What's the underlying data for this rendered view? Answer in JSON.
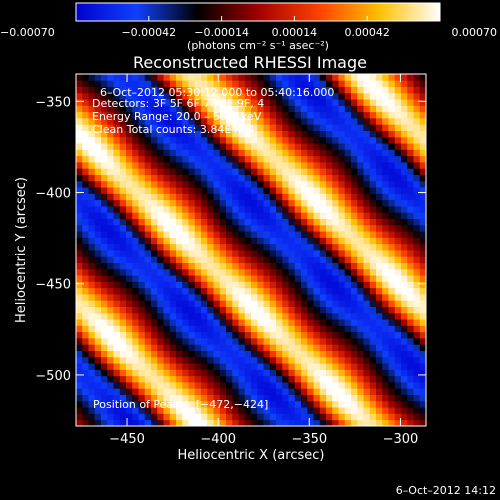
{
  "chart_data": {
    "type": "heatmap",
    "title": "Reconstructed RHESSI Image",
    "xlabel": "Heliocentric X (arcsec)",
    "ylabel": "Heliocentric Y (arcsec)",
    "xlim": [
      -478,
      -286
    ],
    "ylim": [
      -528,
      -335
    ],
    "x_ticks": [
      {
        "value": -450,
        "label": "−450"
      },
      {
        "value": -400,
        "label": "−400"
      },
      {
        "value": -350,
        "label": "−350"
      },
      {
        "value": -300,
        "label": "−300"
      }
    ],
    "y_ticks": [
      {
        "value": -350,
        "label": "−350"
      },
      {
        "value": -400,
        "label": "−400"
      },
      {
        "value": -450,
        "label": "−450"
      },
      {
        "value": -500,
        "label": "−500"
      }
    ],
    "colorbar": {
      "range": [
        -0.0007,
        0.0007
      ],
      "ticks": [
        {
          "value": -0.0007,
          "label": "−0.00070"
        },
        {
          "value": -0.00042,
          "label": "−0.00042"
        },
        {
          "value": -0.00014,
          "label": "−0.00014"
        },
        {
          "value": 0.00014,
          "label": "0.00014"
        },
        {
          "value": 0.00042,
          "label": "0.00042"
        },
        {
          "value": 0.0007,
          "label": "0.00070"
        }
      ],
      "unit_label": "(photons cm⁻² s⁻¹ asec⁻²)",
      "colormap": [
        "#0000d0",
        "#1040ff",
        "#000000",
        "#a00000",
        "#ff4000",
        "#ffc000",
        "#ffffff"
      ]
    },
    "annotations": {
      "time": "6–Oct–2012 05:30:12.000 to 05:40:16.000",
      "detectors": "Detectors: 3F 5F 6F 7F 8F 9F, 4",
      "energy": "Energy Range: 20.0 – 50.0 keV",
      "clean": "Clean    Total counts: 3.84E+04",
      "peak": "Position of Peak = [−472,−424]"
    },
    "pattern": {
      "description_free": true,
      "grid_n": 56,
      "stripe_direction": [
        1,
        1
      ],
      "stripe_period_arcsec": 66,
      "amplitude": 0.0007
    }
  },
  "footer": {
    "timestamp": "6–Oct–2012 14:12"
  }
}
